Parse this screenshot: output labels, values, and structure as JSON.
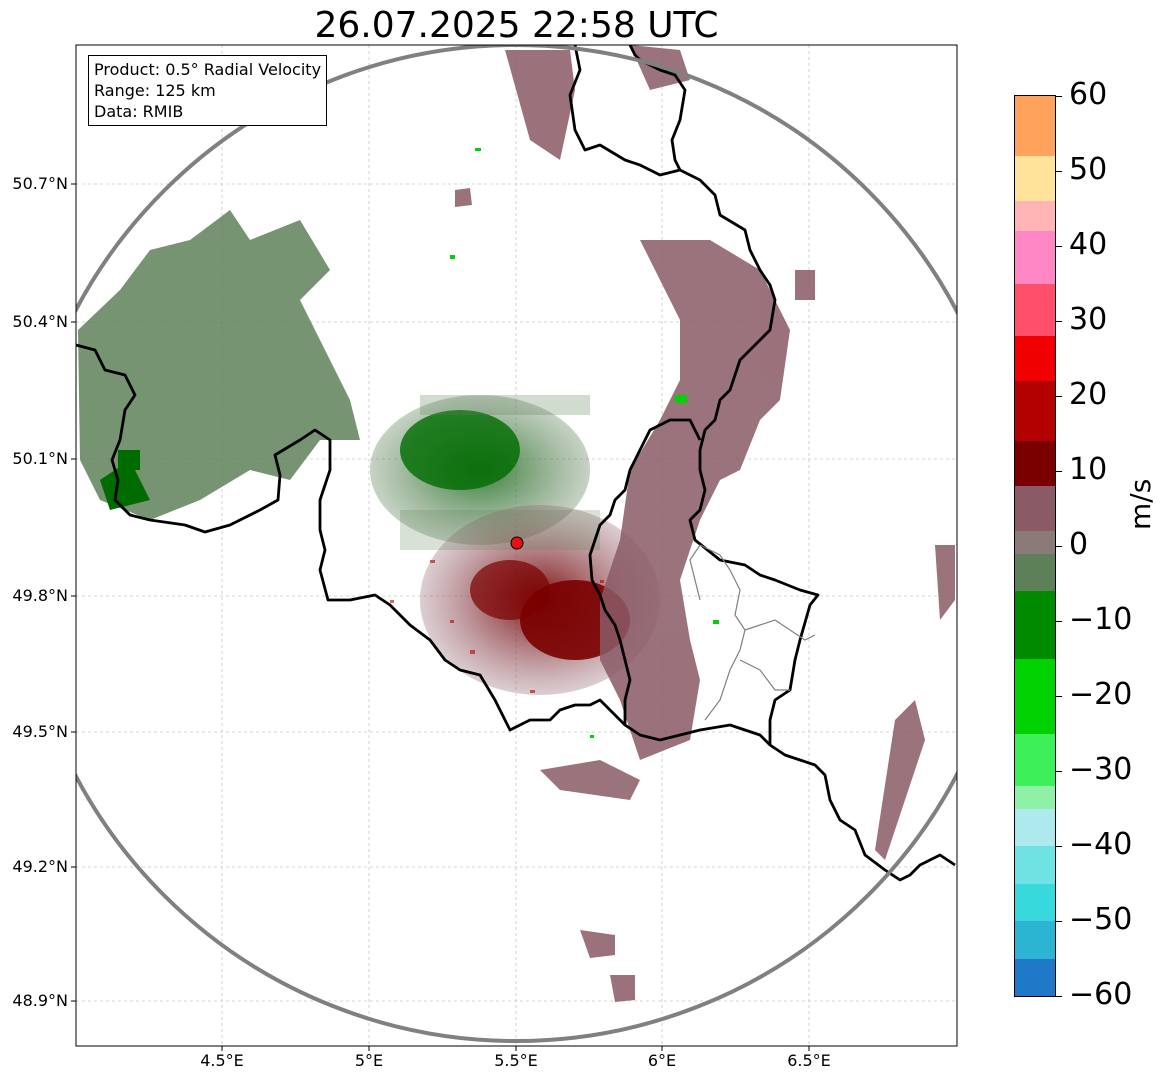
{
  "title": "26.07.2025 22:58 UTC",
  "info_box": {
    "product": "Product: 0.5° Radial Velocity",
    "range": "Range: 125 km",
    "source": "Data: RMIB"
  },
  "x_axis": {
    "ticks": [
      "4.5°E",
      "5°E",
      "5.5°E",
      "6°E",
      "6.5°E"
    ]
  },
  "y_axis": {
    "ticks": [
      "50.7°N",
      "50.4°N",
      "50.1°N",
      "49.8°N",
      "49.5°N",
      "49.2°N",
      "48.9°N"
    ]
  },
  "colorbar": {
    "label": "m/s",
    "ticks": [
      "60",
      "50",
      "40",
      "30",
      "20",
      "10",
      "0",
      "−10",
      "−20",
      "−30",
      "−40",
      "−50",
      "−60"
    ],
    "stops": [
      {
        "from": -60,
        "to": -55,
        "color": "#1f78c8"
      },
      {
        "from": -55,
        "to": -50,
        "color": "#2bb5d3"
      },
      {
        "from": -50,
        "to": -45,
        "color": "#38d9dc"
      },
      {
        "from": -45,
        "to": -40,
        "color": "#6fe3e3"
      },
      {
        "from": -40,
        "to": -35,
        "color": "#aeeaed"
      },
      {
        "from": -35,
        "to": -32,
        "color": "#8ff0a8"
      },
      {
        "from": -32,
        "to": -25,
        "color": "#3df05a"
      },
      {
        "from": -25,
        "to": -15,
        "color": "#00d100"
      },
      {
        "from": -15,
        "to": -6,
        "color": "#008a00"
      },
      {
        "from": -6,
        "to": -1,
        "color": "#5e8059"
      },
      {
        "from": -1,
        "to": 2,
        "color": "#8a7a78"
      },
      {
        "from": 2,
        "to": 8,
        "color": "#8a5a66"
      },
      {
        "from": 8,
        "to": 14,
        "color": "#7a0000"
      },
      {
        "from": 14,
        "to": 22,
        "color": "#b30000"
      },
      {
        "from": 22,
        "to": 28,
        "color": "#f00000"
      },
      {
        "from": 28,
        "to": 35,
        "color": "#ff4f6a"
      },
      {
        "from": 35,
        "to": 42,
        "color": "#ff86c5"
      },
      {
        "from": 42,
        "to": 46,
        "color": "#ffb5b5"
      },
      {
        "from": 46,
        "to": 52,
        "color": "#ffe39a"
      },
      {
        "from": 52,
        "to": 60,
        "color": "#ffa35c"
      }
    ]
  },
  "colors": {
    "range_ring": "#808080",
    "border": "#000000",
    "inner_border": "#808080",
    "radar_site": "#e81010",
    "approaching": "#5e8059",
    "receding": "#8a5a66",
    "strong_receding": "#7a0000",
    "strong_approaching": "#006b00"
  }
}
